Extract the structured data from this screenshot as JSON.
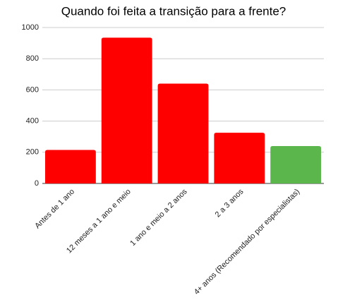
{
  "chart_data": {
    "type": "bar",
    "title": "Quando foi feita a transição para a frente?",
    "categories": [
      "Antes de 1 ano",
      "12 meses a 1 ano e meio",
      "1 ano e meio a 2 anos",
      "2 a 3 anos",
      "4+ anos (Recomendado por especialistas)"
    ],
    "values": [
      215,
      935,
      640,
      325,
      240
    ],
    "colors": [
      "#ff0000",
      "#ff0000",
      "#ff0000",
      "#ff0000",
      "#5bb74b"
    ],
    "ylim": [
      0,
      1000
    ],
    "yticks": [
      0,
      200,
      400,
      600,
      800,
      1000
    ],
    "grid": true
  }
}
